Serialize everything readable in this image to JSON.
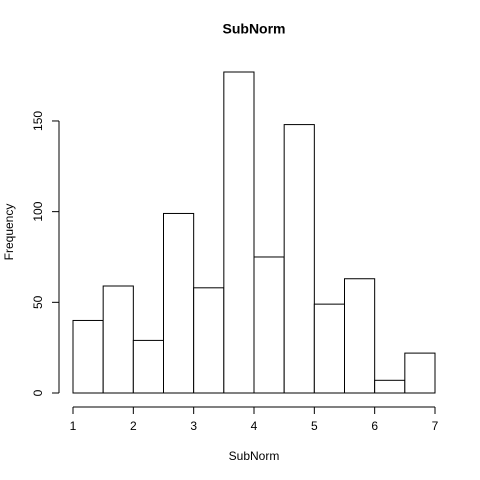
{
  "chart_data": {
    "type": "histogram",
    "title": "SubNorm",
    "x_label": "SubNorm",
    "y_label": "Frequency",
    "bins": [
      1,
      1.5,
      2,
      2.5,
      3,
      3.5,
      4,
      4.5,
      5,
      5.5,
      6,
      6.5,
      7
    ],
    "values": [
      40,
      59,
      29,
      99,
      58,
      177,
      75,
      148,
      49,
      63,
      7,
      22
    ],
    "color": "#ffffff",
    "edge_color": "#000000",
    "xlim": [
      1,
      7
    ],
    "ylim": [
      0,
      177
    ],
    "xticks": [
      1,
      2,
      3,
      4,
      5,
      6,
      7
    ],
    "yticks": [
      0,
      50,
      100,
      150
    ]
  }
}
